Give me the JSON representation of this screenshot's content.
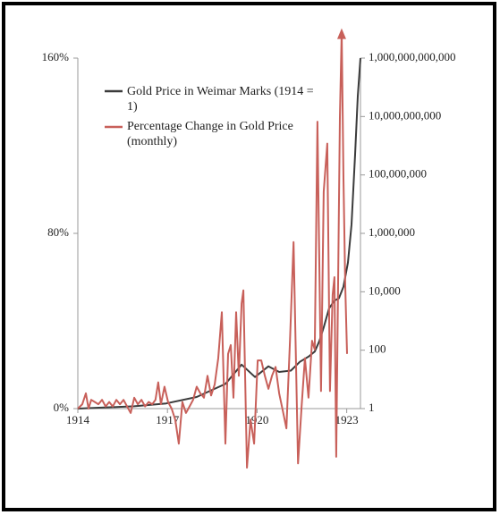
{
  "chart_data": {
    "type": "line",
    "xlim": [
      1914,
      1923.46
    ],
    "xticks": [
      1914,
      1917,
      1920,
      1923
    ],
    "ylim": [
      0,
      160
    ],
    "yticks": [
      {
        "value": 0,
        "label": "0%"
      },
      {
        "value": 80,
        "label": "80%"
      },
      {
        "value": 160,
        "label": "160%"
      }
    ],
    "y2lim": [
      1,
      1000000000000
    ],
    "y2log": true,
    "y2ticks": [
      1,
      100,
      {
        "value": 10000,
        "label": "10,000"
      },
      {
        "value": 1000000,
        "label": "1,000,000"
      },
      {
        "value": 100000000,
        "label": "100,000,000"
      },
      {
        "value": 10000000000,
        "label": "10,000,000,000"
      },
      {
        "value": 1000000000000,
        "label": "1,000,000,000,000"
      }
    ],
    "series": [
      {
        "name": "Gold Price in Weimar Marks (1914 = 1)",
        "color": "#3b3b3b",
        "axis": "y2",
        "x": [
          1914,
          1915.89,
          1916.96,
          1917.98,
          1918.94,
          1919.48,
          1919.93,
          1920.38,
          1920.74,
          1921.13,
          1921.43,
          1921.72,
          1921.93,
          1922.08,
          1922.23,
          1922.41,
          1922.59,
          1922.74,
          1922.89,
          1923.04,
          1923.16,
          1923.28,
          1923.37,
          1923.46
        ],
        "values": [
          1,
          1.2,
          1.5,
          2.5,
          7,
          32,
          12,
          28,
          18,
          20,
          40,
          60,
          90,
          200,
          600,
          2700,
          5000,
          6000,
          15000,
          100000,
          2000000,
          500000000,
          50000000000,
          1000000000000
        ]
      },
      {
        "name": "Percentage Change in Gold Price (monthly)",
        "color": "#c8605a",
        "axis": "y",
        "x": [
          1914,
          1914.15,
          1914.27,
          1914.36,
          1914.45,
          1914.57,
          1914.69,
          1914.81,
          1914.93,
          1915.05,
          1915.17,
          1915.29,
          1915.41,
          1915.53,
          1915.65,
          1915.77,
          1915.89,
          1916.01,
          1916.13,
          1916.25,
          1916.37,
          1916.49,
          1916.6,
          1916.69,
          1916.78,
          1916.9,
          1917.02,
          1917.14,
          1917.26,
          1917.38,
          1917.5,
          1917.62,
          1917.74,
          1917.86,
          1917.98,
          1918.1,
          1918.22,
          1918.34,
          1918.46,
          1918.58,
          1918.7,
          1918.82,
          1918.94,
          1919.03,
          1919.12,
          1919.21,
          1919.3,
          1919.39,
          1919.48,
          1919.54,
          1919.66,
          1919.78,
          1919.9,
          1920.02,
          1920.14,
          1920.26,
          1920.38,
          1920.5,
          1920.62,
          1920.74,
          1920.86,
          1920.98,
          1921.1,
          1921.22,
          1921.37,
          1921.49,
          1921.6,
          1921.72,
          1921.84,
          1921.93,
          1922.02,
          1922.14,
          1922.23,
          1922.35,
          1922.44,
          1922.53,
          1922.59,
          1922.65,
          1922.77,
          1922.83,
          1922.89,
          1922.95,
          1923.01
        ],
        "values": [
          0,
          2,
          7,
          0,
          4,
          3,
          2,
          4,
          1,
          3,
          1,
          4,
          2,
          4,
          1,
          -2,
          5,
          2,
          4,
          1,
          3,
          2,
          4,
          12,
          2,
          10,
          3,
          0,
          -5,
          -16,
          3,
          -2,
          1,
          4,
          10,
          7,
          5,
          15,
          6,
          11,
          23,
          44,
          -16,
          25,
          29,
          5,
          44,
          15,
          48,
          54,
          -27,
          -5,
          -16,
          22,
          22,
          15,
          9,
          15,
          19,
          7,
          -1,
          -9,
          31,
          76,
          -25,
          1,
          23,
          5,
          31,
          27,
          131,
          8,
          99,
          121,
          8,
          52,
          60,
          -22,
          133,
          172,
          105,
          56,
          25
        ]
      }
    ]
  }
}
